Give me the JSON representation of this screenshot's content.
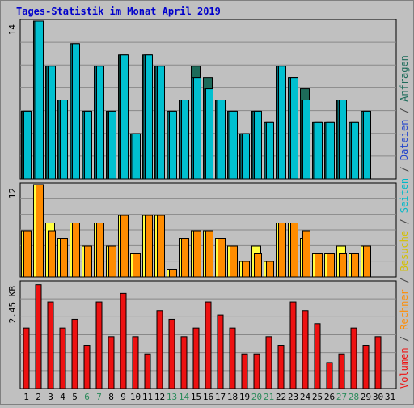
{
  "title": "Tages-Statistik im Monat April 2019",
  "colors": {
    "background": "#c0c0c0",
    "title": "#0000cc",
    "anfragen": "#1d6b5a",
    "dateien": "#00d8f0",
    "seiten": "#00c0d0",
    "besuche": "#ffff40",
    "rechner": "#ff8c00",
    "volumen": "#ee1111",
    "weekend": "#2a8a5a"
  },
  "side_label": [
    {
      "text": "Volumen",
      "color": "#ee1111"
    },
    {
      "text": " / ",
      "color": "#444444"
    },
    {
      "text": "Rechner",
      "color": "#ff8c00"
    },
    {
      "text": " / ",
      "color": "#444444"
    },
    {
      "text": "Besuche",
      "color": "#d4c000"
    },
    {
      "text": " / ",
      "color": "#444444"
    },
    {
      "text": "Seiten",
      "color": "#00b8c8"
    },
    {
      "text": " / ",
      "color": "#444444"
    },
    {
      "text": "Dateien",
      "color": "#2244cc"
    },
    {
      "text": " / ",
      "color": "#444444"
    },
    {
      "text": "Anfragen",
      "color": "#1d6b5a"
    }
  ],
  "chart_data": {
    "type": "bar",
    "x": [
      1,
      2,
      3,
      4,
      5,
      6,
      7,
      8,
      9,
      10,
      11,
      12,
      13,
      14,
      15,
      16,
      17,
      18,
      19,
      20,
      21,
      22,
      23,
      24,
      25,
      26,
      27,
      28,
      29,
      30,
      31
    ],
    "weekend_days": [
      6,
      7,
      13,
      14,
      20,
      21,
      27,
      28
    ],
    "panels": [
      {
        "name": "requests",
        "axis_label": "14",
        "ymax": 14,
        "series": [
          {
            "key": "anfragen",
            "values": [
              6,
              14,
              10,
              7,
              12,
              6,
              10,
              6,
              11,
              4,
              11,
              10,
              6,
              7,
              10,
              9,
              7,
              6,
              4,
              6,
              5,
              10,
              9,
              8,
              5,
              5,
              7,
              5,
              6,
              0,
              0
            ]
          },
          {
            "key": "dateien",
            "values": [
              6,
              14,
              10,
              7,
              12,
              6,
              10,
              6,
              11,
              4,
              11,
              10,
              6,
              7,
              9,
              8,
              7,
              6,
              4,
              6,
              5,
              10,
              9,
              7,
              5,
              5,
              7,
              5,
              6,
              0,
              0
            ]
          },
          {
            "key": "seiten",
            "values": [
              6,
              14,
              10,
              7,
              12,
              6,
              10,
              6,
              11,
              4,
              11,
              10,
              6,
              7,
              9,
              8,
              7,
              6,
              4,
              6,
              5,
              10,
              9,
              7,
              5,
              5,
              7,
              5,
              6,
              0,
              0
            ]
          }
        ]
      },
      {
        "name": "visits",
        "axis_label": "12",
        "ymax": 12,
        "series": [
          {
            "key": "besuche",
            "values": [
              6,
              12,
              7,
              5,
              7,
              4,
              7,
              4,
              8,
              3,
              8,
              8,
              1,
              5,
              6,
              6,
              5,
              4,
              2,
              4,
              2,
              7,
              7,
              5,
              3,
              3,
              4,
              3,
              4,
              0,
              0
            ]
          },
          {
            "key": "rechner",
            "values": [
              6,
              12,
              6,
              5,
              7,
              4,
              7,
              4,
              8,
              3,
              8,
              8,
              1,
              5,
              6,
              6,
              5,
              4,
              2,
              3,
              2,
              7,
              7,
              6,
              3,
              3,
              3,
              3,
              4,
              0,
              0
            ]
          }
        ]
      },
      {
        "name": "volume",
        "axis_label": "2.45 KB",
        "ymax": 2.45,
        "series": [
          {
            "key": "volumen",
            "values": [
              1.4,
              2.4,
              2.0,
              1.4,
              1.6,
              1.0,
              2.0,
              1.2,
              2.2,
              1.2,
              0.8,
              1.8,
              1.6,
              1.2,
              1.4,
              2.0,
              1.7,
              1.4,
              0.8,
              0.8,
              1.2,
              1.0,
              2.0,
              1.8,
              1.5,
              0.6,
              0.8,
              1.4,
              1.0,
              1.2,
              0
            ]
          }
        ]
      }
    ]
  }
}
